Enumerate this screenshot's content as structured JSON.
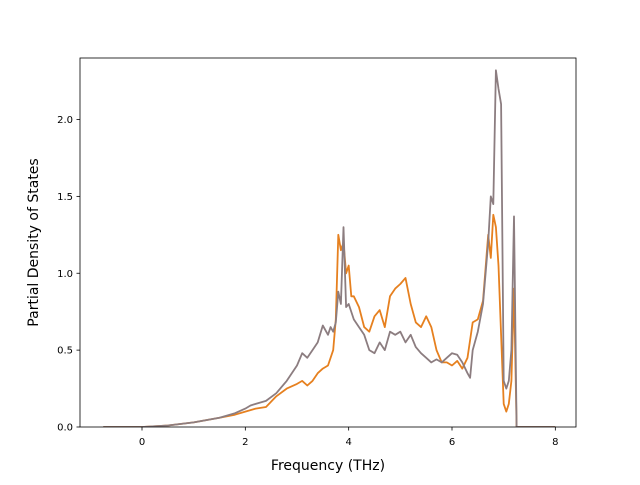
{
  "chart_data": {
    "type": "line",
    "title": "",
    "xlabel": "Frequency (THz)",
    "ylabel": "Partial Density of States",
    "xlim": [
      -1.2,
      8.4
    ],
    "ylim": [
      0.0,
      2.4
    ],
    "xticks": [
      0,
      2,
      4,
      6,
      8
    ],
    "xtick_labels": [
      "0",
      "2",
      "4",
      "6",
      "8"
    ],
    "yticks": [
      0.0,
      0.5,
      1.0,
      1.5,
      2.0
    ],
    "ytick_labels": [
      "0.0",
      "0.5",
      "1.0",
      "1.5",
      "2.0"
    ],
    "grid": false,
    "legend": "none",
    "series": [
      {
        "color": "#e6801f",
        "x": [
          -0.75,
          0.0,
          0.5,
          1.0,
          1.5,
          1.8,
          2.0,
          2.2,
          2.4,
          2.6,
          2.8,
          3.0,
          3.1,
          3.2,
          3.3,
          3.4,
          3.5,
          3.6,
          3.7,
          3.75,
          3.8,
          3.85,
          3.9,
          3.95,
          4.0,
          4.05,
          4.1,
          4.2,
          4.3,
          4.4,
          4.5,
          4.6,
          4.7,
          4.8,
          4.9,
          5.0,
          5.1,
          5.2,
          5.3,
          5.4,
          5.5,
          5.6,
          5.7,
          5.8,
          5.9,
          6.0,
          6.1,
          6.2,
          6.3,
          6.4,
          6.5,
          6.6,
          6.7,
          6.75,
          6.8,
          6.85,
          6.9,
          6.95,
          7.0,
          7.05,
          7.1,
          7.15,
          7.2,
          7.25,
          8.0
        ],
        "y": [
          0.0,
          0.0,
          0.01,
          0.03,
          0.06,
          0.08,
          0.1,
          0.12,
          0.13,
          0.2,
          0.25,
          0.28,
          0.3,
          0.27,
          0.3,
          0.35,
          0.38,
          0.4,
          0.5,
          0.7,
          1.25,
          1.15,
          1.2,
          1.0,
          1.05,
          0.85,
          0.85,
          0.78,
          0.65,
          0.62,
          0.72,
          0.76,
          0.65,
          0.85,
          0.9,
          0.93,
          0.97,
          0.8,
          0.68,
          0.65,
          0.72,
          0.65,
          0.5,
          0.42,
          0.42,
          0.4,
          0.43,
          0.38,
          0.45,
          0.68,
          0.7,
          0.82,
          1.25,
          1.1,
          1.38,
          1.3,
          1.05,
          0.6,
          0.15,
          0.1,
          0.15,
          0.3,
          0.9,
          0.0,
          0.0
        ]
      },
      {
        "color": "#8c7d80",
        "x": [
          -0.75,
          0.0,
          0.5,
          1.0,
          1.5,
          1.8,
          2.0,
          2.1,
          2.2,
          2.4,
          2.6,
          2.8,
          3.0,
          3.1,
          3.2,
          3.3,
          3.4,
          3.5,
          3.6,
          3.65,
          3.7,
          3.75,
          3.8,
          3.85,
          3.9,
          3.95,
          4.0,
          4.1,
          4.2,
          4.3,
          4.4,
          4.5,
          4.6,
          4.7,
          4.8,
          4.9,
          5.0,
          5.1,
          5.2,
          5.3,
          5.4,
          5.5,
          5.6,
          5.7,
          5.8,
          5.9,
          6.0,
          6.1,
          6.2,
          6.3,
          6.35,
          6.4,
          6.5,
          6.6,
          6.7,
          6.75,
          6.8,
          6.85,
          6.9,
          6.95,
          7.0,
          7.05,
          7.1,
          7.15,
          7.2,
          7.25,
          8.0
        ],
        "y": [
          0.0,
          0.0,
          0.01,
          0.03,
          0.06,
          0.09,
          0.12,
          0.14,
          0.15,
          0.17,
          0.22,
          0.3,
          0.4,
          0.48,
          0.45,
          0.5,
          0.55,
          0.66,
          0.6,
          0.65,
          0.62,
          0.68,
          0.88,
          0.8,
          1.3,
          0.78,
          0.8,
          0.7,
          0.65,
          0.6,
          0.5,
          0.48,
          0.55,
          0.5,
          0.62,
          0.6,
          0.62,
          0.55,
          0.6,
          0.52,
          0.48,
          0.45,
          0.42,
          0.44,
          0.42,
          0.45,
          0.48,
          0.47,
          0.42,
          0.35,
          0.32,
          0.5,
          0.62,
          0.8,
          1.2,
          1.5,
          1.45,
          2.32,
          2.2,
          2.1,
          0.3,
          0.25,
          0.3,
          0.5,
          1.37,
          0.0,
          0.0
        ]
      }
    ]
  }
}
